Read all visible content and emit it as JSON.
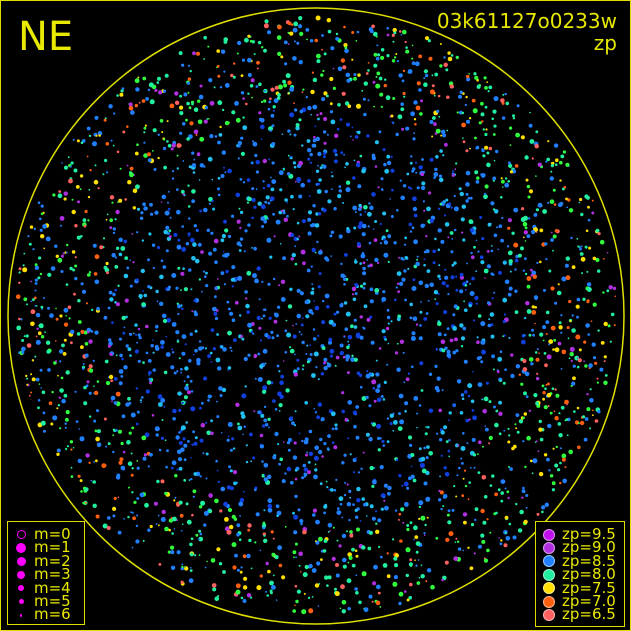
{
  "header": {
    "direction": "NE",
    "observation_id": "03k61127o0233w",
    "mode": "zp"
  },
  "chart_data": {
    "type": "scatter",
    "title": "03k61127o0233w",
    "subtitle": "zp",
    "description_label": "NE",
    "grid": false,
    "legend_magnitude": [
      {
        "label": "m=0",
        "style": "ring"
      },
      {
        "label": "m=1"
      },
      {
        "label": "m=2"
      },
      {
        "label": "m=3"
      },
      {
        "label": "m=4"
      },
      {
        "label": "m=5"
      },
      {
        "label": "m=6"
      }
    ],
    "legend_zp": [
      {
        "label": "zp=9.5",
        "color": "#c010f0"
      },
      {
        "label": "zp=9.0",
        "color": "#b030e0"
      },
      {
        "label": "zp=8.5",
        "color": "#2080ff"
      },
      {
        "label": "zp=8.0",
        "color": "#20f0a0"
      },
      {
        "label": "zp=7.5",
        "color": "#ffe000"
      },
      {
        "label": "zp=7.0",
        "color": "#ff6010"
      },
      {
        "label": "zp=6.5",
        "color": "#ff6060"
      }
    ],
    "legend_placement": [
      "bottom-left",
      "bottom-right"
    ]
  },
  "colors": {
    "frame": "#e0e000",
    "text": "#e8e800",
    "legend_m": "#ff00ff"
  }
}
